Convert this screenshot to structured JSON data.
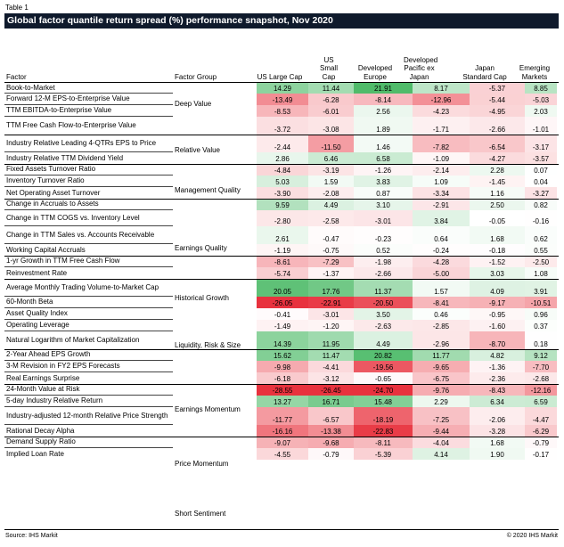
{
  "table_label": "Table 1",
  "title": "Global factor quantile return spread (%) performance snapshot, Nov 2020",
  "columns": {
    "factor": "Factor",
    "group": "Factor Group",
    "values": [
      "US Large Cap",
      "US Small Cap",
      "Developed Europe",
      "Developed Pacific ex Japan",
      "Japan Standard Cap",
      "Emerging Markets"
    ]
  },
  "colors": {
    "title_bg": "#0f1a2c",
    "positive": "#3fb55c",
    "negative": "#e8323e",
    "neutral": "#ffffff"
  },
  "groups": [
    {
      "name": "Deep Value",
      "start": 0,
      "end": 3
    },
    {
      "name": "Relative Value",
      "start": 4,
      "end": 5
    },
    {
      "name": "Management Quality",
      "start": 6,
      "end": 8
    },
    {
      "name": "Earnings Quality",
      "start": 9,
      "end": 12
    },
    {
      "name": "Historical Growth",
      "start": 13,
      "end": 14
    },
    {
      "name": "Liquidity, Risk & Size",
      "start": 15,
      "end": 19
    },
    {
      "name": "Earnings Momentum",
      "start": 20,
      "end": 22
    },
    {
      "name": "Price Momentum",
      "start": 23,
      "end": 26
    },
    {
      "name": "Short Sentiment",
      "start": 27,
      "end": 28
    }
  ],
  "rows": [
    {
      "factor": "Book-to-Market",
      "values": [
        "14.29",
        "11.44",
        "21.91",
        "8.17",
        "-5.37",
        "8.85"
      ]
    },
    {
      "factor": "Forward 12-M EPS-to-Enterprise Value",
      "values": [
        "-13.49",
        "-6.28",
        "-8.14",
        "-12.96",
        "-5.44",
        "-5.03"
      ]
    },
    {
      "factor": "TTM EBITDA-to-Enterprise Value",
      "values": [
        "-8.53",
        "-6.01",
        "2.56",
        "-4.23",
        "-4.95",
        "2.03"
      ]
    },
    {
      "factor": "TTM Free Cash Flow-to-Enterprise Value",
      "values": [
        "-3.72",
        "-3.08",
        "1.89",
        "-1.71",
        "-2.66",
        "-1.01"
      ]
    },
    {
      "factor": "Industry Relative Leading 4-QTRs EPS to Price",
      "values": [
        "-2.44",
        "-11.50",
        "1.46",
        "-7.82",
        "-6.54",
        "-3.17"
      ]
    },
    {
      "factor": "Industry Relative TTM Dividend Yield",
      "values": [
        "2.86",
        "6.46",
        "6.58",
        "-1.09",
        "-4.27",
        "-3.57"
      ]
    },
    {
      "factor": "Fixed Assets Turnover Ratio",
      "values": [
        "-4.84",
        "-3.19",
        "-1.26",
        "-2.14",
        "2.28",
        "0.07"
      ]
    },
    {
      "factor": "Inventory Turnover Ratio",
      "values": [
        "5.03",
        "1.59",
        "3.83",
        "1.09",
        "-1.45",
        "0.04"
      ]
    },
    {
      "factor": "Net Operating Asset Turnover",
      "values": [
        "-3.90",
        "-2.08",
        "0.87",
        "-3.34",
        "1.16",
        "-3.27"
      ]
    },
    {
      "factor": "Change in Accruals to Assets",
      "values": [
        "9.59",
        "4.49",
        "3.10",
        "-2.91",
        "2.50",
        "0.82"
      ]
    },
    {
      "factor": "Change in TTM COGS vs. Inventory Level",
      "values": [
        "-2.80",
        "-2.58",
        "-3.01",
        "3.84",
        "-0.05",
        "-0.16"
      ]
    },
    {
      "factor": "Change in TTM Sales vs. Accounts Receivable",
      "values": [
        "2.61",
        "-0.47",
        "-0.23",
        "0.64",
        "1.68",
        "0.62"
      ]
    },
    {
      "factor": "Working Capital Accruals",
      "values": [
        "-1.19",
        "-0.75",
        "0.52",
        "-0.24",
        "-0.18",
        "0.55"
      ]
    },
    {
      "factor": "1-yr Growth in TTM Free Cash Flow",
      "values": [
        "-8.61",
        "-7.29",
        "-1.98",
        "-4.28",
        "-1.52",
        "-2.50"
      ]
    },
    {
      "factor": "Reinvestment Rate",
      "values": [
        "-5.74",
        "-1.37",
        "-2.66",
        "-5.00",
        "3.03",
        "1.08"
      ]
    },
    {
      "factor": "Average Monthly Trading Volume-to-Market Cap",
      "values": [
        "20.05",
        "17.76",
        "11.37",
        "1.57",
        "4.09",
        "3.91"
      ]
    },
    {
      "factor": "60-Month Beta",
      "values": [
        "-26.05",
        "-22.91",
        "-20.50",
        "-8.41",
        "-9.17",
        "-10.51"
      ]
    },
    {
      "factor": "Asset Quality Index",
      "values": [
        "-0.41",
        "-3.01",
        "3.50",
        "0.46",
        "-0.95",
        "0.96"
      ]
    },
    {
      "factor": "Operating Leverage",
      "values": [
        "-1.49",
        "-1.20",
        "-2.63",
        "-2.85",
        "-1.60",
        "0.37"
      ]
    },
    {
      "factor": "Natural Logarithm of Market Capitalization",
      "values": [
        "14.39",
        "11.95",
        "4.49",
        "-2.96",
        "-8.70",
        "0.18"
      ]
    },
    {
      "factor": "2-Year Ahead EPS Growth",
      "values": [
        "15.62",
        "11.47",
        "20.82",
        "11.77",
        "4.82",
        "9.12"
      ]
    },
    {
      "factor": "3-M Revision in FY2 EPS Forecasts",
      "values": [
        "-9.98",
        "-4.41",
        "-19.56",
        "-9.65",
        "-1.36",
        "-7.70"
      ]
    },
    {
      "factor": "Real Earnings Surprise",
      "values": [
        "-6.18",
        "-3.12",
        "-0.65",
        "-6.75",
        "-2.36",
        "-2.68"
      ]
    },
    {
      "factor": "24-Month Value at Risk",
      "values": [
        "-28.55",
        "-26.45",
        "-24.70",
        "-9.76",
        "-8.43",
        "-12.16"
      ]
    },
    {
      "factor": "5-day Industry Relative Return",
      "values": [
        "13.27",
        "16.71",
        "15.48",
        "2.29",
        "6.34",
        "6.59"
      ]
    },
    {
      "factor": "Industry-adjusted 12-month Relative Price Strength",
      "values": [
        "-11.77",
        "-6.57",
        "-18.19",
        "-7.25",
        "-2.06",
        "-4.47"
      ]
    },
    {
      "factor": "Rational Decay Alpha",
      "values": [
        "-16.16",
        "-13.38",
        "-22.83",
        "-9.44",
        "-3.28",
        "-6.29"
      ]
    },
    {
      "factor": "Demand Supply Ratio",
      "values": [
        "-9.07",
        "-9.68",
        "-8.11",
        "-4.04",
        "1.68",
        "-0.79"
      ]
    },
    {
      "factor": "Implied Loan Rate",
      "values": [
        "-4.55",
        "-0.79",
        "-5.39",
        "4.14",
        "1.90",
        "-0.17"
      ]
    }
  ],
  "footer": {
    "source": "Source: IHS Markit",
    "copyright": "© 2020 IHS Markit"
  }
}
